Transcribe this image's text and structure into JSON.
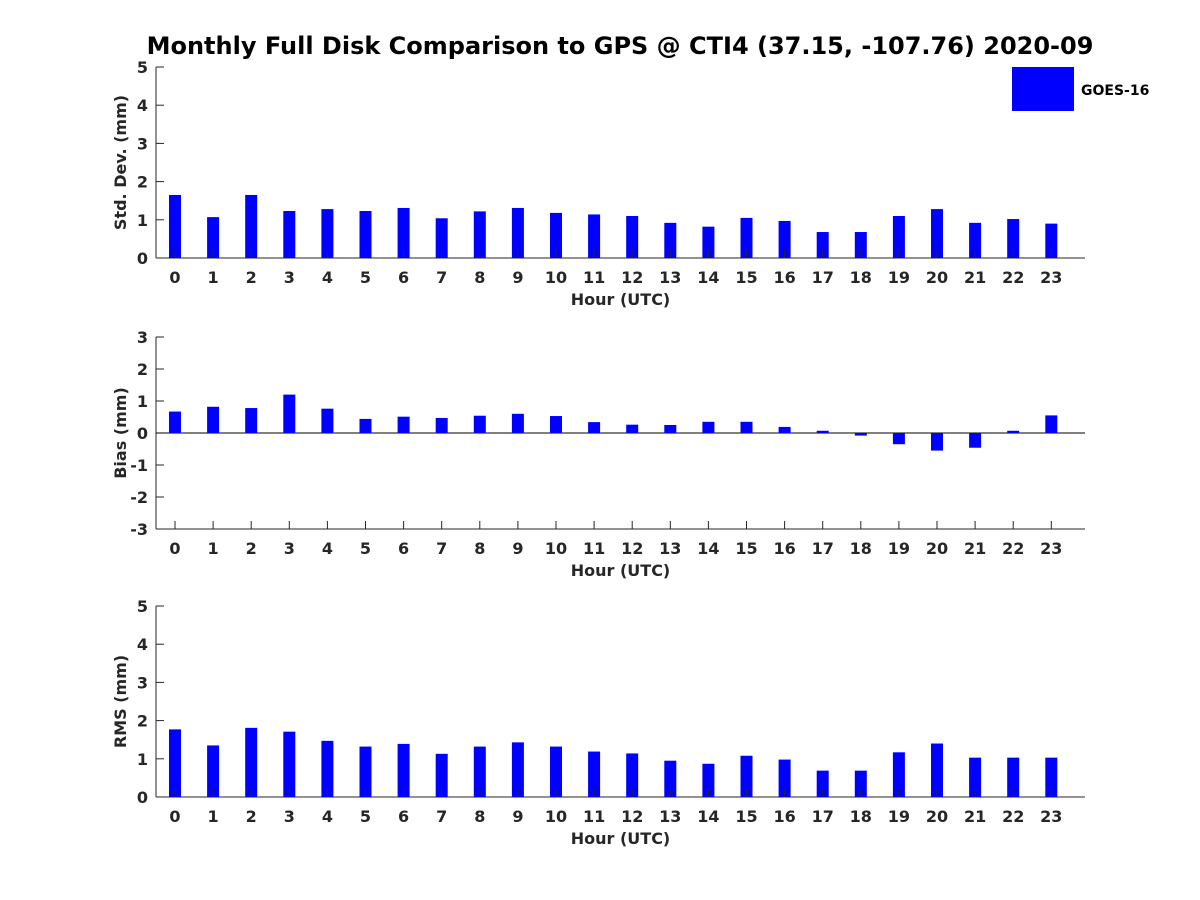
{
  "chart_data": {
    "title": "Monthly Full Disk Comparison to GPS @ CTI4 (37.15, -107.76) 2020-09",
    "legend": {
      "position": "top-right",
      "label": "GOES-16",
      "color": "#0000ff"
    },
    "panels": [
      {
        "type": "bar",
        "xlabel": "Hour (UTC)",
        "ylabel": "Std. Dev. (mm)",
        "ylim": [
          0,
          5
        ],
        "yticks": [
          "0",
          "1",
          "2",
          "3",
          "4",
          "5"
        ],
        "categories": [
          "0",
          "1",
          "2",
          "3",
          "4",
          "5",
          "6",
          "7",
          "8",
          "9",
          "10",
          "11",
          "12",
          "13",
          "14",
          "15",
          "16",
          "17",
          "18",
          "19",
          "20",
          "21",
          "22",
          "23"
        ],
        "series": [
          {
            "name": "GOES-16",
            "color": "#0000ff",
            "values": [
              1.65,
              1.07,
              1.65,
              1.23,
              1.28,
              1.23,
              1.31,
              1.04,
              1.22,
              1.31,
              1.18,
              1.14,
              1.1,
              0.92,
              0.82,
              1.05,
              0.97,
              0.68,
              0.68,
              1.1,
              1.28,
              0.92,
              1.02,
              0.9
            ]
          }
        ]
      },
      {
        "type": "bar",
        "xlabel": "Hour (UTC)",
        "ylabel": "Bias (mm)",
        "ylim": [
          -3,
          3
        ],
        "yticks": [
          "-3",
          "-2",
          "-1",
          "0",
          "1",
          "2",
          "3"
        ],
        "categories": [
          "0",
          "1",
          "2",
          "3",
          "4",
          "5",
          "6",
          "7",
          "8",
          "9",
          "10",
          "11",
          "12",
          "13",
          "14",
          "15",
          "16",
          "17",
          "18",
          "19",
          "20",
          "21",
          "22",
          "23"
        ],
        "series": [
          {
            "name": "GOES-16",
            "color": "#0000ff",
            "values": [
              0.67,
              0.82,
              0.78,
              1.2,
              0.76,
              0.44,
              0.51,
              0.47,
              0.54,
              0.6,
              0.53,
              0.34,
              0.26,
              0.25,
              0.35,
              0.35,
              0.19,
              0.07,
              -0.08,
              -0.35,
              -0.55,
              -0.46,
              0.07,
              0.55
            ]
          }
        ]
      },
      {
        "type": "bar",
        "xlabel": "Hour (UTC)",
        "ylabel": "RMS (mm)",
        "ylim": [
          0,
          5
        ],
        "yticks": [
          "0",
          "1",
          "2",
          "3",
          "4",
          "5"
        ],
        "categories": [
          "0",
          "1",
          "2",
          "3",
          "4",
          "5",
          "6",
          "7",
          "8",
          "9",
          "10",
          "11",
          "12",
          "13",
          "14",
          "15",
          "16",
          "17",
          "18",
          "19",
          "20",
          "21",
          "22",
          "23"
        ],
        "series": [
          {
            "name": "GOES-16",
            "color": "#0000ff",
            "values": [
              1.77,
              1.35,
              1.81,
              1.71,
              1.47,
              1.32,
              1.39,
              1.13,
              1.32,
              1.43,
              1.32,
              1.19,
              1.14,
              0.95,
              0.87,
              1.08,
              0.98,
              0.69,
              0.69,
              1.17,
              1.4,
              1.03,
              1.03,
              1.03
            ]
          }
        ]
      }
    ]
  }
}
